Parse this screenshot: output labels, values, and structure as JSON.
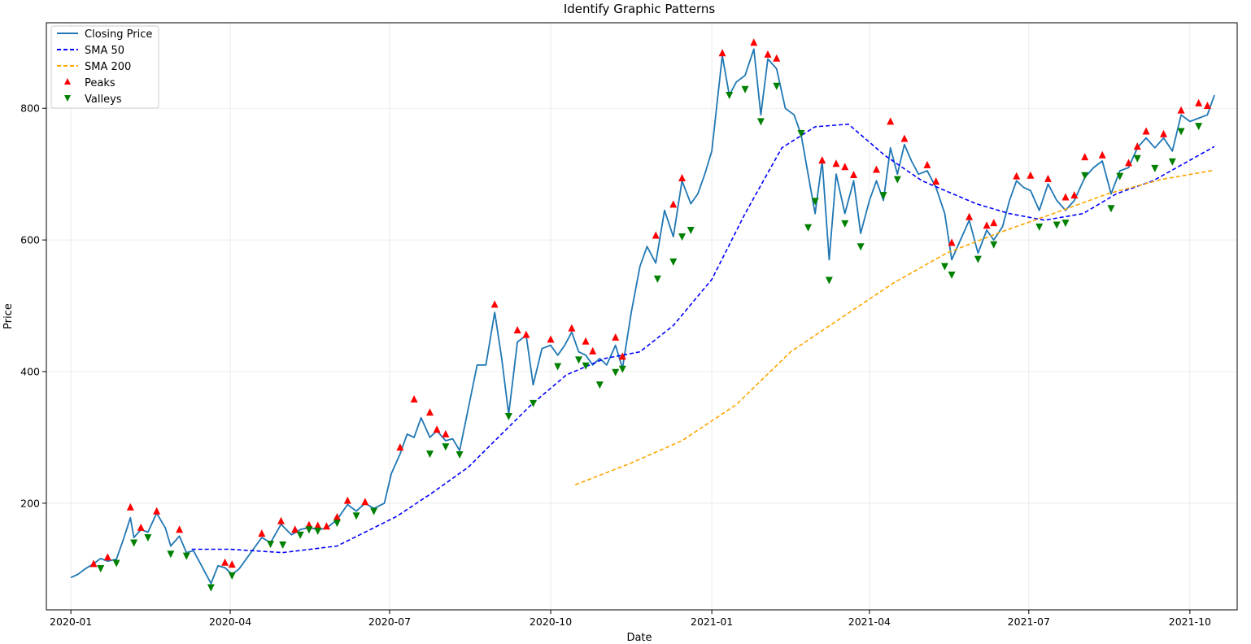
{
  "chart_data": {
    "type": "line",
    "title": "Identify Graphic Patterns",
    "xlabel": "Date",
    "ylabel": "Price",
    "xlim": [
      "2019-12-18",
      "2021-10-28"
    ],
    "ylim": [
      38,
      930
    ],
    "grid": true,
    "legend_position": "top-left",
    "x_ticks": [
      "2020-01",
      "2020-04",
      "2020-07",
      "2020-10",
      "2021-01",
      "2021-04",
      "2021-07",
      "2021-10"
    ],
    "y_ticks": [
      200,
      400,
      600,
      800
    ],
    "colors": {
      "closing": "#1f77b4",
      "sma50": "#0000ff",
      "sma200": "#ffa500",
      "peaks": "#ff0000",
      "valleys": "#008000"
    },
    "series": [
      {
        "name": "Closing Price",
        "style": "solid",
        "points": [
          [
            "2020-01-01",
            87
          ],
          [
            "2020-01-05",
            92
          ],
          [
            "2020-01-09",
            100
          ],
          [
            "2020-01-14",
            108
          ],
          [
            "2020-01-18",
            116
          ],
          [
            "2020-01-22",
            112
          ],
          [
            "2020-01-27",
            115
          ],
          [
            "2020-01-31",
            145
          ],
          [
            "2020-02-04",
            178
          ],
          [
            "2020-02-06",
            148
          ],
          [
            "2020-02-10",
            160
          ],
          [
            "2020-02-14",
            156
          ],
          [
            "2020-02-19",
            185
          ],
          [
            "2020-02-24",
            162
          ],
          [
            "2020-02-27",
            135
          ],
          [
            "2020-03-03",
            150
          ],
          [
            "2020-03-07",
            125
          ],
          [
            "2020-03-11",
            128
          ],
          [
            "2020-03-15",
            108
          ],
          [
            "2020-03-21",
            78
          ],
          [
            "2020-03-25",
            105
          ],
          [
            "2020-03-29",
            102
          ],
          [
            "2020-04-02",
            92
          ],
          [
            "2020-04-06",
            100
          ],
          [
            "2020-04-12",
            122
          ],
          [
            "2020-04-19",
            148
          ],
          [
            "2020-04-24",
            140
          ],
          [
            "2020-04-30",
            168
          ],
          [
            "2020-05-06",
            152
          ],
          [
            "2020-05-11",
            160
          ],
          [
            "2020-05-16",
            163
          ],
          [
            "2020-05-21",
            160
          ],
          [
            "2020-05-26",
            162
          ],
          [
            "2020-06-01",
            175
          ],
          [
            "2020-06-07",
            198
          ],
          [
            "2020-06-12",
            188
          ],
          [
            "2020-06-17",
            200
          ],
          [
            "2020-06-22",
            192
          ],
          [
            "2020-06-28",
            200
          ],
          [
            "2020-07-02",
            245
          ],
          [
            "2020-07-07",
            275
          ],
          [
            "2020-07-11",
            305
          ],
          [
            "2020-07-15",
            300
          ],
          [
            "2020-07-19",
            330
          ],
          [
            "2020-07-24",
            300
          ],
          [
            "2020-07-28",
            310
          ],
          [
            "2020-08-02",
            295
          ],
          [
            "2020-08-06",
            298
          ],
          [
            "2020-08-10",
            280
          ],
          [
            "2020-08-15",
            345
          ],
          [
            "2020-08-20",
            410
          ],
          [
            "2020-08-25",
            410
          ],
          [
            "2020-08-30",
            490
          ],
          [
            "2020-09-03",
            420
          ],
          [
            "2020-09-07",
            335
          ],
          [
            "2020-09-12",
            445
          ],
          [
            "2020-09-17",
            455
          ],
          [
            "2020-09-21",
            380
          ],
          [
            "2020-09-26",
            435
          ],
          [
            "2020-10-01",
            440
          ],
          [
            "2020-10-05",
            425
          ],
          [
            "2020-10-09",
            440
          ],
          [
            "2020-10-13",
            460
          ],
          [
            "2020-10-17",
            430
          ],
          [
            "2020-10-21",
            425
          ],
          [
            "2020-10-25",
            410
          ],
          [
            "2020-10-29",
            420
          ],
          [
            "2020-11-02",
            410
          ],
          [
            "2020-11-07",
            440
          ],
          [
            "2020-11-11",
            405
          ],
          [
            "2020-11-16",
            490
          ],
          [
            "2020-11-21",
            560
          ],
          [
            "2020-11-25",
            590
          ],
          [
            "2020-11-30",
            565
          ],
          [
            "2020-12-05",
            645
          ],
          [
            "2020-12-10",
            605
          ],
          [
            "2020-12-15",
            690
          ],
          [
            "2020-12-20",
            655
          ],
          [
            "2020-12-24",
            670
          ],
          [
            "2020-12-28",
            700
          ],
          [
            "2021-01-01",
            735
          ],
          [
            "2021-01-07",
            880
          ],
          [
            "2021-01-11",
            820
          ],
          [
            "2021-01-15",
            840
          ],
          [
            "2021-01-20",
            850
          ],
          [
            "2021-01-25",
            890
          ],
          [
            "2021-01-29",
            790
          ],
          [
            "2021-02-02",
            875
          ],
          [
            "2021-02-07",
            860
          ],
          [
            "2021-02-12",
            800
          ],
          [
            "2021-02-17",
            790
          ],
          [
            "2021-02-21",
            760
          ],
          [
            "2021-02-25",
            700
          ],
          [
            "2021-03-01",
            640
          ],
          [
            "2021-03-05",
            720
          ],
          [
            "2021-03-09",
            570
          ],
          [
            "2021-03-13",
            700
          ],
          [
            "2021-03-18",
            640
          ],
          [
            "2021-03-23",
            690
          ],
          [
            "2021-03-27",
            610
          ],
          [
            "2021-04-01",
            660
          ],
          [
            "2021-04-05",
            690
          ],
          [
            "2021-04-09",
            660
          ],
          [
            "2021-04-13",
            740
          ],
          [
            "2021-04-17",
            700
          ],
          [
            "2021-04-21",
            745
          ],
          [
            "2021-04-25",
            720
          ],
          [
            "2021-04-29",
            700
          ],
          [
            "2021-05-04",
            705
          ],
          [
            "2021-05-09",
            680
          ],
          [
            "2021-05-14",
            640
          ],
          [
            "2021-05-18",
            570
          ],
          [
            "2021-05-23",
            600
          ],
          [
            "2021-05-28",
            630
          ],
          [
            "2021-06-02",
            580
          ],
          [
            "2021-06-07",
            615
          ],
          [
            "2021-06-11",
            600
          ],
          [
            "2021-06-16",
            620
          ],
          [
            "2021-06-20",
            660
          ],
          [
            "2021-06-24",
            690
          ],
          [
            "2021-06-28",
            680
          ],
          [
            "2021-07-02",
            675
          ],
          [
            "2021-07-07",
            645
          ],
          [
            "2021-07-12",
            685
          ],
          [
            "2021-07-17",
            660
          ],
          [
            "2021-07-22",
            645
          ],
          [
            "2021-07-27",
            660
          ],
          [
            "2021-08-02",
            695
          ],
          [
            "2021-08-07",
            710
          ],
          [
            "2021-08-12",
            720
          ],
          [
            "2021-08-17",
            670
          ],
          [
            "2021-08-22",
            705
          ],
          [
            "2021-08-27",
            710
          ],
          [
            "2021-09-01",
            740
          ],
          [
            "2021-09-06",
            755
          ],
          [
            "2021-09-11",
            740
          ],
          [
            "2021-09-16",
            755
          ],
          [
            "2021-09-21",
            735
          ],
          [
            "2021-09-26",
            790
          ],
          [
            "2021-10-01",
            780
          ],
          [
            "2021-10-06",
            785
          ],
          [
            "2021-10-11",
            790
          ],
          [
            "2021-10-15",
            820
          ]
        ]
      },
      {
        "name": "SMA 50",
        "style": "dashed",
        "points": [
          [
            "2020-03-10",
            130
          ],
          [
            "2020-04-01",
            130
          ],
          [
            "2020-05-01",
            125
          ],
          [
            "2020-06-01",
            135
          ],
          [
            "2020-06-20",
            160
          ],
          [
            "2020-07-05",
            180
          ],
          [
            "2020-07-25",
            215
          ],
          [
            "2020-08-15",
            255
          ],
          [
            "2020-09-01",
            300
          ],
          [
            "2020-09-20",
            350
          ],
          [
            "2020-10-10",
            395
          ],
          [
            "2020-11-01",
            420
          ],
          [
            "2020-11-21",
            430
          ],
          [
            "2020-12-10",
            470
          ],
          [
            "2021-01-01",
            540
          ],
          [
            "2021-01-20",
            640
          ],
          [
            "2021-02-10",
            740
          ],
          [
            "2021-03-01",
            772
          ],
          [
            "2021-03-20",
            776
          ],
          [
            "2021-04-10",
            728
          ],
          [
            "2021-05-01",
            690
          ],
          [
            "2021-06-01",
            655
          ],
          [
            "2021-06-20",
            640
          ],
          [
            "2021-07-10",
            630
          ],
          [
            "2021-08-01",
            640
          ],
          [
            "2021-08-20",
            670
          ],
          [
            "2021-09-10",
            690
          ],
          [
            "2021-10-15",
            742
          ]
        ]
      },
      {
        "name": "SMA 200",
        "style": "dashed",
        "points": [
          [
            "2020-10-15",
            228
          ],
          [
            "2020-11-15",
            260
          ],
          [
            "2020-12-15",
            295
          ],
          [
            "2021-01-15",
            350
          ],
          [
            "2021-02-15",
            430
          ],
          [
            "2021-03-15",
            480
          ],
          [
            "2021-04-15",
            535
          ],
          [
            "2021-05-15",
            580
          ],
          [
            "2021-06-15",
            612
          ],
          [
            "2021-07-15",
            640
          ],
          [
            "2021-08-15",
            670
          ],
          [
            "2021-09-15",
            692
          ],
          [
            "2021-10-15",
            706
          ]
        ]
      }
    ],
    "peaks": [
      [
        "2020-01-14",
        108
      ],
      [
        "2020-01-22",
        118
      ],
      [
        "2020-02-04",
        194
      ],
      [
        "2020-02-10",
        163
      ],
      [
        "2020-02-19",
        188
      ],
      [
        "2020-03-03",
        160
      ],
      [
        "2020-03-29",
        110
      ],
      [
        "2020-04-02",
        107
      ],
      [
        "2020-04-19",
        154
      ],
      [
        "2020-04-30",
        173
      ],
      [
        "2020-05-08",
        160
      ],
      [
        "2020-05-16",
        167
      ],
      [
        "2020-05-21",
        166
      ],
      [
        "2020-05-26",
        165
      ],
      [
        "2020-06-01",
        179
      ],
      [
        "2020-06-07",
        204
      ],
      [
        "2020-06-17",
        202
      ],
      [
        "2020-07-07",
        285
      ],
      [
        "2020-07-15",
        358
      ],
      [
        "2020-07-24",
        338
      ],
      [
        "2020-07-28",
        312
      ],
      [
        "2020-08-02",
        305
      ],
      [
        "2020-08-30",
        502
      ],
      [
        "2020-09-12",
        463
      ],
      [
        "2020-09-17",
        456
      ],
      [
        "2020-10-01",
        449
      ],
      [
        "2020-10-13",
        466
      ],
      [
        "2020-10-21",
        446
      ],
      [
        "2020-10-25",
        431
      ],
      [
        "2020-11-07",
        452
      ],
      [
        "2020-11-11",
        423
      ],
      [
        "2020-11-30",
        607
      ],
      [
        "2020-12-10",
        654
      ],
      [
        "2020-12-15",
        694
      ],
      [
        "2021-01-07",
        884
      ],
      [
        "2021-01-25",
        900
      ],
      [
        "2021-02-02",
        882
      ],
      [
        "2021-02-07",
        876
      ],
      [
        "2021-03-05",
        721
      ],
      [
        "2021-03-13",
        716
      ],
      [
        "2021-03-18",
        711
      ],
      [
        "2021-03-23",
        699
      ],
      [
        "2021-04-05",
        707
      ],
      [
        "2021-04-13",
        780
      ],
      [
        "2021-04-21",
        754
      ],
      [
        "2021-05-04",
        714
      ],
      [
        "2021-05-09",
        689
      ],
      [
        "2021-05-18",
        596
      ],
      [
        "2021-05-28",
        635
      ],
      [
        "2021-06-07",
        622
      ],
      [
        "2021-06-11",
        626
      ],
      [
        "2021-06-24",
        697
      ],
      [
        "2021-07-02",
        698
      ],
      [
        "2021-07-12",
        693
      ],
      [
        "2021-07-22",
        665
      ],
      [
        "2021-07-27",
        668
      ],
      [
        "2021-08-02",
        726
      ],
      [
        "2021-08-12",
        729
      ],
      [
        "2021-08-27",
        717
      ],
      [
        "2021-09-01",
        742
      ],
      [
        "2021-09-06",
        765
      ],
      [
        "2021-09-16",
        761
      ],
      [
        "2021-09-26",
        797
      ],
      [
        "2021-10-06",
        808
      ],
      [
        "2021-10-11",
        804
      ]
    ],
    "valleys": [
      [
        "2020-01-18",
        101
      ],
      [
        "2020-01-27",
        109
      ],
      [
        "2020-02-06",
        140
      ],
      [
        "2020-02-14",
        148
      ],
      [
        "2020-02-27",
        123
      ],
      [
        "2020-03-07",
        120
      ],
      [
        "2020-03-21",
        72
      ],
      [
        "2020-04-02",
        90
      ],
      [
        "2020-04-24",
        138
      ],
      [
        "2020-05-01",
        137
      ],
      [
        "2020-05-11",
        152
      ],
      [
        "2020-05-16",
        160
      ],
      [
        "2020-05-21",
        158
      ],
      [
        "2020-06-01",
        170
      ],
      [
        "2020-06-12",
        181
      ],
      [
        "2020-06-22",
        188
      ],
      [
        "2020-07-24",
        275
      ],
      [
        "2020-08-02",
        286
      ],
      [
        "2020-08-10",
        274
      ],
      [
        "2020-09-07",
        332
      ],
      [
        "2020-09-21",
        352
      ],
      [
        "2020-10-05",
        408
      ],
      [
        "2020-10-17",
        418
      ],
      [
        "2020-10-21",
        409
      ],
      [
        "2020-10-29",
        380
      ],
      [
        "2020-11-07",
        399
      ],
      [
        "2020-11-11",
        404
      ],
      [
        "2020-12-01",
        541
      ],
      [
        "2020-12-10",
        567
      ],
      [
        "2020-12-15",
        605
      ],
      [
        "2020-12-20",
        615
      ],
      [
        "2021-01-11",
        820
      ],
      [
        "2021-01-20",
        829
      ],
      [
        "2021-01-29",
        780
      ],
      [
        "2021-02-07",
        834
      ],
      [
        "2021-02-21",
        762
      ],
      [
        "2021-02-25",
        619
      ],
      [
        "2021-03-01",
        659
      ],
      [
        "2021-03-09",
        539
      ],
      [
        "2021-03-18",
        625
      ],
      [
        "2021-03-27",
        590
      ],
      [
        "2021-04-09",
        668
      ],
      [
        "2021-04-17",
        692
      ],
      [
        "2021-05-14",
        560
      ],
      [
        "2021-05-18",
        547
      ],
      [
        "2021-06-02",
        571
      ],
      [
        "2021-06-11",
        593
      ],
      [
        "2021-07-07",
        620
      ],
      [
        "2021-07-17",
        623
      ],
      [
        "2021-07-22",
        626
      ],
      [
        "2021-08-02",
        698
      ],
      [
        "2021-08-17",
        648
      ],
      [
        "2021-08-22",
        697
      ],
      [
        "2021-09-01",
        724
      ],
      [
        "2021-09-11",
        709
      ],
      [
        "2021-09-21",
        719
      ],
      [
        "2021-09-26",
        765
      ],
      [
        "2021-10-06",
        773
      ]
    ],
    "legend": [
      "Closing Price",
      "SMA 50",
      "SMA 200",
      "Peaks",
      "Valleys"
    ]
  }
}
